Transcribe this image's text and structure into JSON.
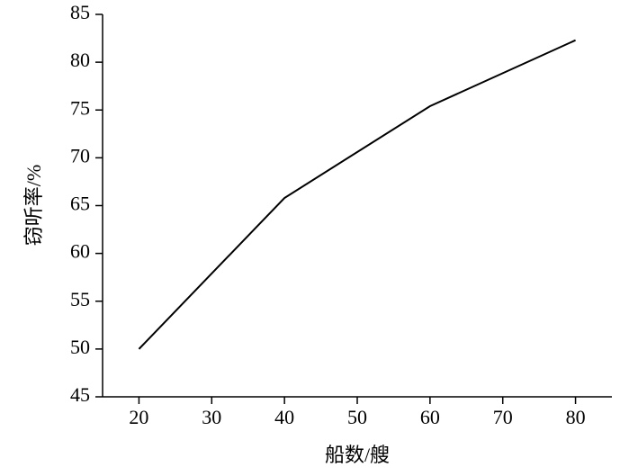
{
  "chart_data": {
    "type": "line",
    "x_label": "船数/艘",
    "y_label": "窃听率/%",
    "x": [
      20,
      40,
      60,
      80
    ],
    "series": [
      {
        "values": [
          50,
          65.8,
          75.4,
          82.3
        ],
        "color": "#000000"
      }
    ],
    "xlim": [
      15,
      85
    ],
    "xticks": [
      20,
      30,
      40,
      50,
      60,
      70,
      80
    ],
    "ylim": [
      45,
      85
    ],
    "yticks": [
      45,
      50,
      55,
      60,
      65,
      70,
      75,
      80,
      85
    ],
    "grid": false
  }
}
